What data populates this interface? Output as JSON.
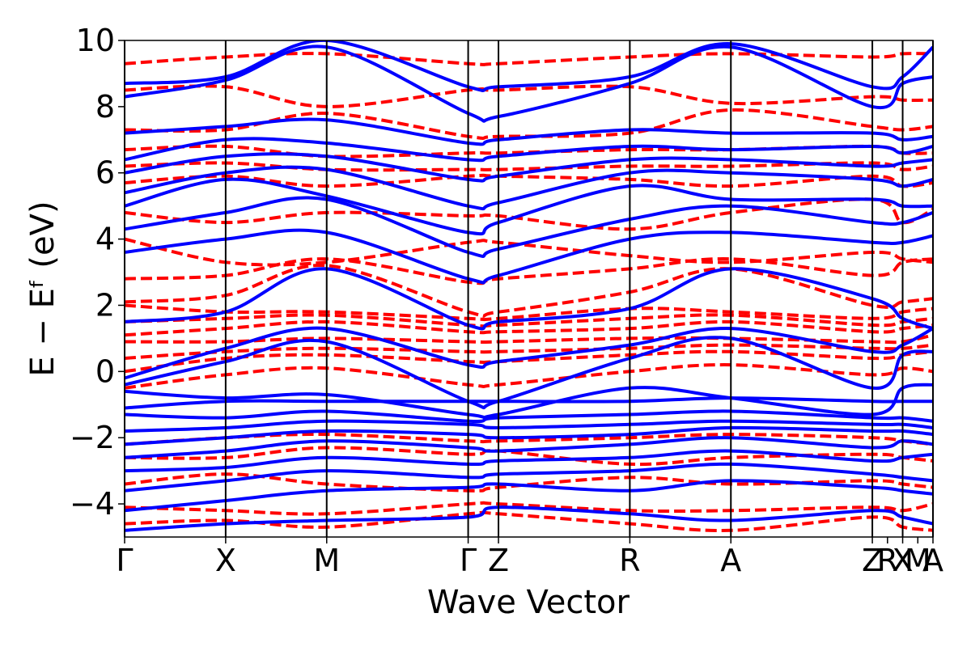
{
  "chart_data": {
    "type": "line",
    "title": "",
    "xlabel": "Wave Vector",
    "ylabel": "E − Eᶠ (eV)",
    "ylim": [
      -5,
      10
    ],
    "yticks": [
      -4,
      -2,
      0,
      2,
      4,
      6,
      8,
      10
    ],
    "ytick_labels": [
      "−4",
      "−2",
      "0",
      "2",
      "4",
      "6",
      "8",
      "10"
    ],
    "grid": false,
    "legend": "none",
    "k_path": {
      "positions": [
        0,
        1,
        2,
        3.4,
        3.7,
        5.0,
        6.0,
        7.4,
        7.7,
        8.0
      ],
      "labels": [
        "Γ",
        "X",
        "M",
        "Γ",
        "Z",
        "R",
        "A",
        "Z",
        "R",
        "X",
        "M",
        "A"
      ],
      "label_positions": [
        0,
        1,
        2,
        3.4,
        3.7,
        5.0,
        6.0,
        7.4,
        7.55,
        7.7,
        7.85,
        8.0
      ]
    },
    "series": [
      {
        "color": "#0000ff",
        "style": "solid",
        "bands": [
          [
            -4.8,
            -4.6,
            -4.5,
            -4.4,
            -4.1,
            -4.3,
            -4.5,
            -4.2,
            -4.4,
            -4.6
          ],
          [
            -4.2,
            -3.9,
            -3.6,
            -3.5,
            -3.4,
            -3.6,
            -3.3,
            -3.5,
            -3.6,
            -3.7
          ],
          [
            -3.6,
            -3.3,
            -3.0,
            -3.2,
            -3.1,
            -3.0,
            -2.8,
            -3.1,
            -3.2,
            -3.3
          ],
          [
            -3.0,
            -2.9,
            -2.6,
            -2.8,
            -2.7,
            -2.6,
            -2.4,
            -2.7,
            -2.6,
            -2.5
          ],
          [
            -2.6,
            -2.4,
            -2.1,
            -2.3,
            -2.4,
            -2.2,
            -2.0,
            -2.3,
            -2.1,
            -2.2
          ],
          [
            -2.2,
            -2.0,
            -1.8,
            -1.9,
            -2.0,
            -1.9,
            -1.7,
            -1.8,
            -1.8,
            -1.9
          ],
          [
            -1.8,
            -1.7,
            -1.5,
            -1.6,
            -1.7,
            -1.6,
            -1.5,
            -1.6,
            -1.6,
            -1.7
          ],
          [
            -1.3,
            -1.4,
            -1.2,
            -1.5,
            -1.4,
            -1.3,
            -1.2,
            -1.4,
            -1.4,
            -1.5
          ],
          [
            -1.1,
            -0.9,
            -0.9,
            -0.9,
            -0.9,
            -0.9,
            -0.8,
            -0.9,
            -0.9,
            -0.9
          ],
          [
            -0.6,
            -0.8,
            -0.7,
            -1.3,
            -1.3,
            -0.5,
            -0.8,
            -1.3,
            -0.5,
            -0.4
          ],
          [
            -0.4,
            0.3,
            0.9,
            -0.9,
            -0.9,
            0.4,
            1.0,
            -0.5,
            0.5,
            0.6
          ],
          [
            -0.2,
            0.7,
            1.3,
            0.2,
            0.3,
            0.8,
            1.3,
            0.6,
            0.8,
            1.3
          ],
          [
            1.5,
            1.8,
            3.1,
            1.4,
            1.5,
            1.9,
            3.1,
            2.2,
            1.6,
            1.3
          ],
          [
            3.6,
            4.0,
            4.2,
            2.8,
            2.9,
            4.0,
            4.2,
            3.9,
            3.9,
            4.1
          ],
          [
            4.3,
            4.8,
            5.2,
            3.6,
            3.7,
            4.6,
            5.0,
            4.5,
            4.5,
            4.8
          ],
          [
            5.0,
            5.8,
            5.3,
            4.2,
            4.5,
            5.6,
            5.2,
            5.2,
            5.0,
            5.0
          ],
          [
            5.4,
            6.0,
            6.1,
            5.0,
            5.1,
            6.0,
            6.0,
            5.8,
            5.6,
            5.8
          ],
          [
            6.0,
            6.5,
            6.5,
            5.8,
            5.9,
            6.4,
            6.4,
            6.2,
            6.3,
            6.4
          ],
          [
            6.4,
            7.0,
            6.9,
            6.4,
            6.5,
            6.8,
            6.7,
            6.8,
            6.6,
            6.8
          ],
          [
            7.2,
            7.4,
            7.6,
            6.9,
            7.0,
            7.3,
            7.2,
            7.2,
            7.0,
            7.1
          ],
          [
            8.3,
            8.8,
            9.8,
            7.8,
            7.7,
            8.7,
            9.8,
            8.0,
            8.7,
            8.9
          ],
          [
            8.7,
            8.9,
            10.0,
            8.6,
            8.6,
            8.9,
            9.9,
            8.6,
            8.9,
            9.8
          ]
        ]
      },
      {
        "color": "#ff0000",
        "style": "dashed",
        "bands": [
          [
            -4.6,
            -4.5,
            -4.7,
            -4.3,
            -4.3,
            -4.6,
            -4.8,
            -4.4,
            -4.7,
            -4.8
          ],
          [
            -4.1,
            -4.2,
            -4.3,
            -4.0,
            -4.0,
            -4.2,
            -4.2,
            -4.1,
            -4.2,
            -4.0
          ],
          [
            -3.4,
            -3.1,
            -3.4,
            -3.6,
            -3.5,
            -3.2,
            -3.4,
            -3.3,
            -3.4,
            -3.5
          ],
          [
            -2.6,
            -2.6,
            -2.3,
            -2.5,
            -2.4,
            -2.8,
            -2.6,
            -2.5,
            -2.6,
            -2.7
          ],
          [
            -2.2,
            -2.0,
            -1.9,
            -2.1,
            -2.1,
            -2.0,
            -1.9,
            -2.0,
            -2.1,
            -2.2
          ],
          [
            -0.5,
            -0.1,
            0.1,
            -0.4,
            -0.4,
            0.0,
            0.2,
            -0.1,
            0.1,
            0.0
          ],
          [
            0.0,
            0.4,
            0.5,
            0.3,
            0.3,
            0.5,
            0.6,
            0.4,
            0.5,
            0.6
          ],
          [
            0.4,
            0.6,
            0.7,
            0.6,
            0.6,
            0.7,
            0.8,
            0.7,
            0.7,
            0.8
          ],
          [
            0.9,
            0.9,
            1.0,
            0.9,
            0.9,
            1.0,
            1.0,
            0.9,
            0.9,
            1.1
          ],
          [
            1.1,
            1.3,
            1.5,
            1.2,
            1.2,
            1.3,
            1.5,
            1.2,
            1.3,
            1.4
          ],
          [
            1.5,
            1.6,
            1.7,
            1.4,
            1.4,
            1.6,
            1.7,
            1.4,
            1.5,
            1.6
          ],
          [
            2.0,
            1.8,
            1.8,
            1.6,
            1.6,
            1.9,
            1.8,
            1.6,
            1.8,
            1.9
          ],
          [
            2.1,
            2.3,
            3.2,
            1.8,
            1.8,
            2.4,
            3.1,
            2.0,
            2.1,
            2.2
          ],
          [
            2.8,
            2.9,
            3.4,
            2.7,
            2.8,
            3.1,
            3.4,
            2.9,
            3.3,
            3.4
          ],
          [
            4.0,
            3.3,
            3.3,
            3.9,
            3.9,
            3.5,
            3.3,
            3.6,
            3.4,
            3.3
          ],
          [
            4.8,
            4.5,
            4.8,
            4.7,
            4.7,
            4.3,
            4.8,
            5.2,
            4.5,
            4.9
          ],
          [
            5.7,
            5.9,
            5.6,
            5.9,
            5.9,
            5.8,
            5.6,
            5.9,
            5.6,
            5.7
          ],
          [
            6.2,
            6.3,
            6.1,
            6.1,
            6.1,
            6.2,
            6.2,
            6.3,
            6.1,
            6.2
          ],
          [
            6.7,
            6.8,
            6.5,
            6.6,
            6.6,
            6.7,
            6.7,
            6.8,
            6.6,
            6.6
          ],
          [
            7.3,
            7.3,
            7.8,
            7.1,
            7.1,
            7.2,
            7.9,
            7.4,
            7.3,
            7.4
          ],
          [
            8.5,
            8.6,
            8.0,
            8.5,
            8.5,
            8.6,
            8.1,
            8.3,
            8.2,
            8.2
          ],
          [
            9.3,
            9.5,
            9.6,
            9.3,
            9.3,
            9.5,
            9.6,
            9.5,
            9.6,
            9.6
          ]
        ]
      }
    ]
  }
}
